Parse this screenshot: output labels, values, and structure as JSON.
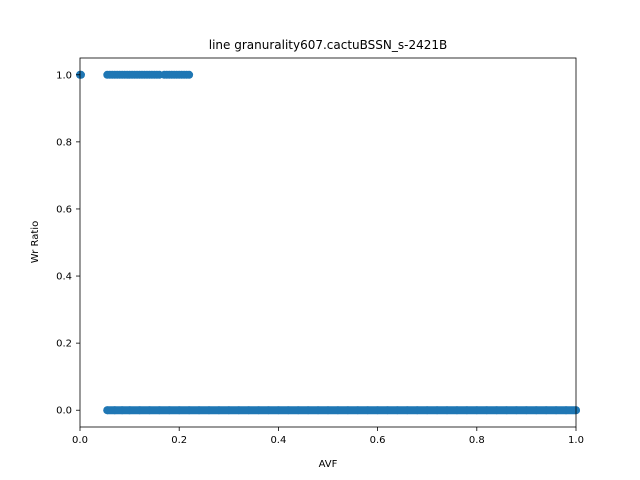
{
  "chart_data": {
    "type": "scatter",
    "title": "line granurality607.cactuBSSN_s-2421B",
    "xlabel": "AVF",
    "ylabel": "Wr Ratio",
    "xlim": [
      0.0,
      1.0
    ],
    "ylim": [
      -0.05,
      1.05
    ],
    "x_ticks": [
      "0.0",
      "0.2",
      "0.4",
      "0.6",
      "0.8",
      "1.0"
    ],
    "y_ticks": [
      "0.0",
      "0.2",
      "0.4",
      "0.6",
      "0.8",
      "1.0"
    ],
    "grid": false,
    "marker_color": "#1f77b4",
    "series": [
      {
        "points": [
          [
            0.0,
            1.0
          ],
          [
            0.002,
            1.0
          ],
          [
            0.055,
            1.0
          ],
          [
            0.06,
            1.0
          ],
          [
            0.065,
            1.0
          ],
          [
            0.07,
            1.0
          ],
          [
            0.075,
            1.0
          ],
          [
            0.08,
            1.0
          ],
          [
            0.085,
            1.0
          ],
          [
            0.09,
            1.0
          ],
          [
            0.095,
            1.0
          ],
          [
            0.1,
            1.0
          ],
          [
            0.105,
            1.0
          ],
          [
            0.11,
            1.0
          ],
          [
            0.115,
            1.0
          ],
          [
            0.12,
            1.0
          ],
          [
            0.125,
            1.0
          ],
          [
            0.13,
            1.0
          ],
          [
            0.135,
            1.0
          ],
          [
            0.14,
            1.0
          ],
          [
            0.145,
            1.0
          ],
          [
            0.15,
            1.0
          ],
          [
            0.155,
            1.0
          ],
          [
            0.16,
            1.0
          ],
          [
            0.17,
            1.0
          ],
          [
            0.175,
            1.0
          ],
          [
            0.18,
            1.0
          ],
          [
            0.185,
            1.0
          ],
          [
            0.19,
            1.0
          ],
          [
            0.195,
            1.0
          ],
          [
            0.2,
            1.0
          ],
          [
            0.205,
            1.0
          ],
          [
            0.21,
            1.0
          ],
          [
            0.215,
            1.0
          ],
          [
            0.22,
            1.0
          ],
          [
            0.055,
            0.0
          ],
          [
            0.07,
            0.0
          ],
          [
            0.085,
            0.0
          ],
          [
            0.1,
            0.0
          ],
          [
            0.12,
            0.0
          ],
          [
            0.14,
            0.0
          ],
          [
            0.16,
            0.0
          ],
          [
            0.18,
            0.0
          ],
          [
            0.2,
            0.0
          ],
          [
            0.22,
            0.0
          ],
          [
            0.24,
            0.0
          ],
          [
            0.26,
            0.0
          ],
          [
            0.28,
            0.0
          ],
          [
            0.3,
            0.0
          ],
          [
            0.32,
            0.0
          ],
          [
            0.34,
            0.0
          ],
          [
            0.36,
            0.0
          ],
          [
            0.38,
            0.0
          ],
          [
            0.4,
            0.0
          ],
          [
            0.42,
            0.0
          ],
          [
            0.44,
            0.0
          ],
          [
            0.46,
            0.0
          ],
          [
            0.48,
            0.0
          ],
          [
            0.5,
            0.0
          ],
          [
            0.52,
            0.0
          ],
          [
            0.54,
            0.0
          ],
          [
            0.56,
            0.0
          ],
          [
            0.58,
            0.0
          ],
          [
            0.6,
            0.0
          ],
          [
            0.62,
            0.0
          ],
          [
            0.64,
            0.0
          ],
          [
            0.66,
            0.0
          ],
          [
            0.68,
            0.0
          ],
          [
            0.7,
            0.0
          ],
          [
            0.72,
            0.0
          ],
          [
            0.74,
            0.0
          ],
          [
            0.76,
            0.0
          ],
          [
            0.78,
            0.0
          ],
          [
            0.8,
            0.0
          ],
          [
            0.82,
            0.0
          ],
          [
            0.84,
            0.0
          ],
          [
            0.86,
            0.0
          ],
          [
            0.88,
            0.0
          ],
          [
            0.9,
            0.0
          ],
          [
            0.92,
            0.0
          ],
          [
            0.94,
            0.0
          ],
          [
            0.96,
            0.0
          ],
          [
            0.98,
            0.0
          ],
          [
            1.0,
            0.0
          ]
        ]
      }
    ]
  }
}
